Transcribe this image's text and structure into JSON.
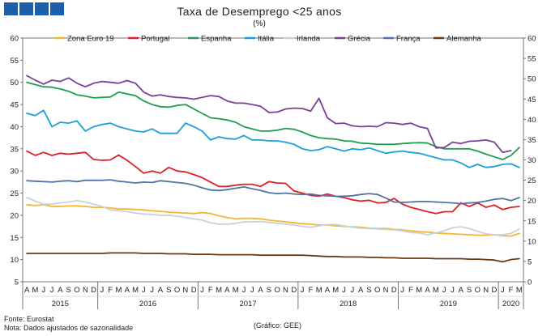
{
  "header": {
    "title": "Taxa de Desemprego <25 anos",
    "subtitle": "(%)"
  },
  "footer": {
    "source": "Fonte: Eurostat",
    "note": "Nota: Dados ajustados de sazonalidade",
    "credit": "(Gráfico: GEE)"
  },
  "chart_data": {
    "type": "line",
    "title": "Taxa de Desemprego <25 anos",
    "ylabel": "(%)",
    "ylim": [
      5,
      60
    ],
    "yticks": [
      5,
      10,
      15,
      20,
      25,
      30,
      35,
      40,
      45,
      50,
      55,
      60
    ],
    "y2ticks": [
      0,
      5,
      10,
      15,
      20,
      25,
      30,
      35,
      40,
      45,
      50,
      55,
      60
    ],
    "month_labels": [
      "A",
      "M",
      "J",
      "J",
      "A",
      "S",
      "O",
      "N",
      "D",
      "J",
      "F",
      "M",
      "A",
      "M",
      "J",
      "J",
      "A",
      "S",
      "O",
      "N",
      "D",
      "J",
      "F",
      "M",
      "A",
      "M",
      "J",
      "J",
      "A",
      "S",
      "O",
      "N",
      "D",
      "J",
      "F",
      "M",
      "A",
      "M",
      "J",
      "J",
      "A",
      "S",
      "O",
      "N",
      "D",
      "J",
      "F",
      "M",
      "A",
      "M",
      "J",
      "J",
      "A",
      "S",
      "O",
      "N",
      "D",
      "J",
      "F",
      "M"
    ],
    "year_labels": [
      "2015",
      "2016",
      "2017",
      "2018",
      "2019",
      "2020"
    ],
    "series": [
      {
        "name": "Zona Euro 19",
        "color": "#f2b632",
        "values": [
          22.4,
          22.2,
          22.4,
          22.0,
          22.0,
          22.1,
          22.1,
          22.0,
          21.8,
          21.8,
          21.7,
          21.4,
          21.4,
          21.3,
          21.2,
          21.0,
          20.9,
          20.7,
          20.6,
          20.5,
          20.4,
          20.6,
          20.4,
          19.9,
          19.5,
          19.2,
          19.3,
          19.3,
          19.2,
          18.9,
          18.7,
          18.5,
          18.3,
          18.1,
          18.0,
          17.8,
          17.8,
          17.6,
          17.5,
          17.4,
          17.3,
          17.1,
          17.0,
          17.0,
          16.8,
          16.7,
          16.5,
          16.3,
          16.2,
          16.0,
          15.9,
          15.8,
          15.7,
          15.6,
          15.5,
          15.5,
          15.6,
          15.4,
          15.3,
          15.9
        ]
      },
      {
        "name": "Portugal",
        "color": "#e01f26",
        "values": [
          34.5,
          33.5,
          34.2,
          33.5,
          34.0,
          33.8,
          34.0,
          34.2,
          32.6,
          32.4,
          32.5,
          33.6,
          32.4,
          31.0,
          29.5,
          30.0,
          29.5,
          30.8,
          30.0,
          29.8,
          29.2,
          28.5,
          27.5,
          26.5,
          26.5,
          26.8,
          27.0,
          27.0,
          26.5,
          27.6,
          27.3,
          27.2,
          25.5,
          25.0,
          24.5,
          24.3,
          24.8,
          24.3,
          24.0,
          23.5,
          23.2,
          23.4,
          22.8,
          22.9,
          23.8,
          22.5,
          21.8,
          21.3,
          20.8,
          20.4,
          20.8,
          20.8,
          22.8,
          22.0,
          22.8,
          21.8,
          22.3,
          21.3,
          21.8,
          22.0
        ]
      },
      {
        "name": "Espanha",
        "color": "#1e9e4f",
        "values": [
          50.0,
          49.5,
          49.0,
          48.9,
          48.5,
          48.0,
          47.2,
          46.9,
          46.5,
          46.6,
          46.7,
          47.8,
          47.4,
          47.0,
          45.8,
          45.0,
          44.5,
          44.4,
          44.8,
          45.0,
          44.0,
          43.0,
          42.0,
          41.8,
          41.5,
          41.0,
          40.0,
          39.5,
          39.0,
          39.0,
          39.2,
          39.6,
          39.4,
          38.8,
          38.0,
          37.5,
          37.3,
          37.2,
          36.8,
          36.7,
          36.3,
          36.2,
          36.0,
          36.0,
          36.0,
          36.2,
          36.3,
          36.4,
          36.3,
          35.5,
          35.0,
          35.0,
          35.0,
          35.0,
          34.5,
          33.8,
          33.2,
          32.6,
          33.5,
          35.3
        ]
      },
      {
        "name": "Itália",
        "color": "#1a9fdc",
        "values": [
          43.0,
          42.5,
          43.7,
          40.0,
          41.0,
          40.8,
          41.3,
          39.0,
          40.0,
          40.5,
          40.8,
          40.0,
          39.5,
          39.0,
          38.8,
          39.5,
          38.5,
          38.5,
          38.5,
          40.8,
          40.0,
          39.0,
          37.0,
          37.7,
          37.3,
          37.2,
          38.0,
          37.0,
          37.0,
          36.8,
          36.8,
          36.5,
          36.0,
          35.0,
          34.6,
          34.8,
          35.5,
          35.0,
          34.5,
          35.0,
          34.8,
          35.2,
          34.6,
          34.0,
          34.3,
          34.5,
          34.2,
          34.0,
          33.5,
          33.0,
          32.5,
          32.5,
          31.8,
          30.8,
          31.5,
          30.8,
          31.0,
          31.5,
          31.6,
          30.8
        ]
      },
      {
        "name": "Irlanda",
        "color": "#c9d1dc",
        "values": [
          24.0,
          23.2,
          22.5,
          22.5,
          22.8,
          23.0,
          23.3,
          23.0,
          22.5,
          22.0,
          21.2,
          21.0,
          20.8,
          20.5,
          20.3,
          20.2,
          20.0,
          20.0,
          19.8,
          19.5,
          19.2,
          18.9,
          18.3,
          18.0,
          18.0,
          18.2,
          18.5,
          18.5,
          18.6,
          18.4,
          18.2,
          18.0,
          17.8,
          17.5,
          17.3,
          17.6,
          17.9,
          17.9,
          17.6,
          17.3,
          17.1,
          17.0,
          16.9,
          16.8,
          16.7,
          16.5,
          16.1,
          16.0,
          15.6,
          16.0,
          16.5,
          17.2,
          17.4,
          17.0,
          16.4,
          15.8,
          15.6,
          15.6,
          15.9,
          16.9
        ]
      },
      {
        "name": "Grécia",
        "color": "#7c3f98",
        "values": [
          51.5,
          50.5,
          49.6,
          50.5,
          50.2,
          51.0,
          49.8,
          49.0,
          49.8,
          50.2,
          50.0,
          49.8,
          50.4,
          49.8,
          47.8,
          46.9,
          47.2,
          46.8,
          46.6,
          46.5,
          46.2,
          46.6,
          47.0,
          46.8,
          45.8,
          45.3,
          45.3,
          45.0,
          44.6,
          43.2,
          43.3,
          44.0,
          44.2,
          44.1,
          43.5,
          46.4,
          42.0,
          40.7,
          40.8,
          40.2,
          40.0,
          40.1,
          40.0,
          40.9,
          40.8,
          40.5,
          40.8,
          40.0,
          39.6,
          35.2,
          35.3,
          36.5,
          36.2,
          36.7,
          36.8,
          37.0,
          36.5,
          34.2,
          34.6,
          null
        ]
      },
      {
        "name": "França",
        "color": "#4f75a8",
        "values": [
          27.8,
          27.7,
          27.6,
          27.5,
          27.7,
          27.8,
          27.6,
          27.9,
          27.9,
          27.9,
          28.0,
          27.7,
          27.5,
          27.3,
          27.5,
          27.4,
          27.8,
          27.6,
          27.4,
          27.2,
          26.8,
          26.2,
          25.7,
          25.6,
          25.8,
          26.1,
          26.4,
          26.0,
          25.6,
          25.1,
          24.9,
          25.0,
          24.8,
          24.7,
          24.8,
          24.5,
          24.4,
          24.3,
          24.3,
          24.4,
          24.7,
          24.9,
          24.7,
          23.9,
          23.0,
          22.9,
          23.0,
          23.1,
          23.1,
          23.0,
          22.9,
          22.8,
          22.6,
          22.8,
          22.9,
          23.2,
          23.6,
          23.8,
          23.3,
          24.0
        ]
      },
      {
        "name": "Alemanha",
        "color": "#6b3a12",
        "values": [
          11.4,
          11.4,
          11.4,
          11.4,
          11.4,
          11.4,
          11.4,
          11.4,
          11.4,
          11.4,
          11.5,
          11.5,
          11.5,
          11.5,
          11.4,
          11.4,
          11.4,
          11.3,
          11.3,
          11.3,
          11.2,
          11.2,
          11.2,
          11.1,
          11.1,
          11.1,
          11.1,
          11.1,
          11.0,
          11.0,
          11.0,
          11.0,
          11.0,
          11.0,
          10.9,
          10.8,
          10.7,
          10.7,
          10.6,
          10.6,
          10.6,
          10.5,
          10.5,
          10.4,
          10.4,
          10.3,
          10.3,
          10.3,
          10.3,
          10.2,
          10.2,
          10.2,
          10.2,
          10.1,
          10.1,
          10.0,
          9.9,
          9.5,
          10.0,
          10.2
        ]
      }
    ]
  }
}
